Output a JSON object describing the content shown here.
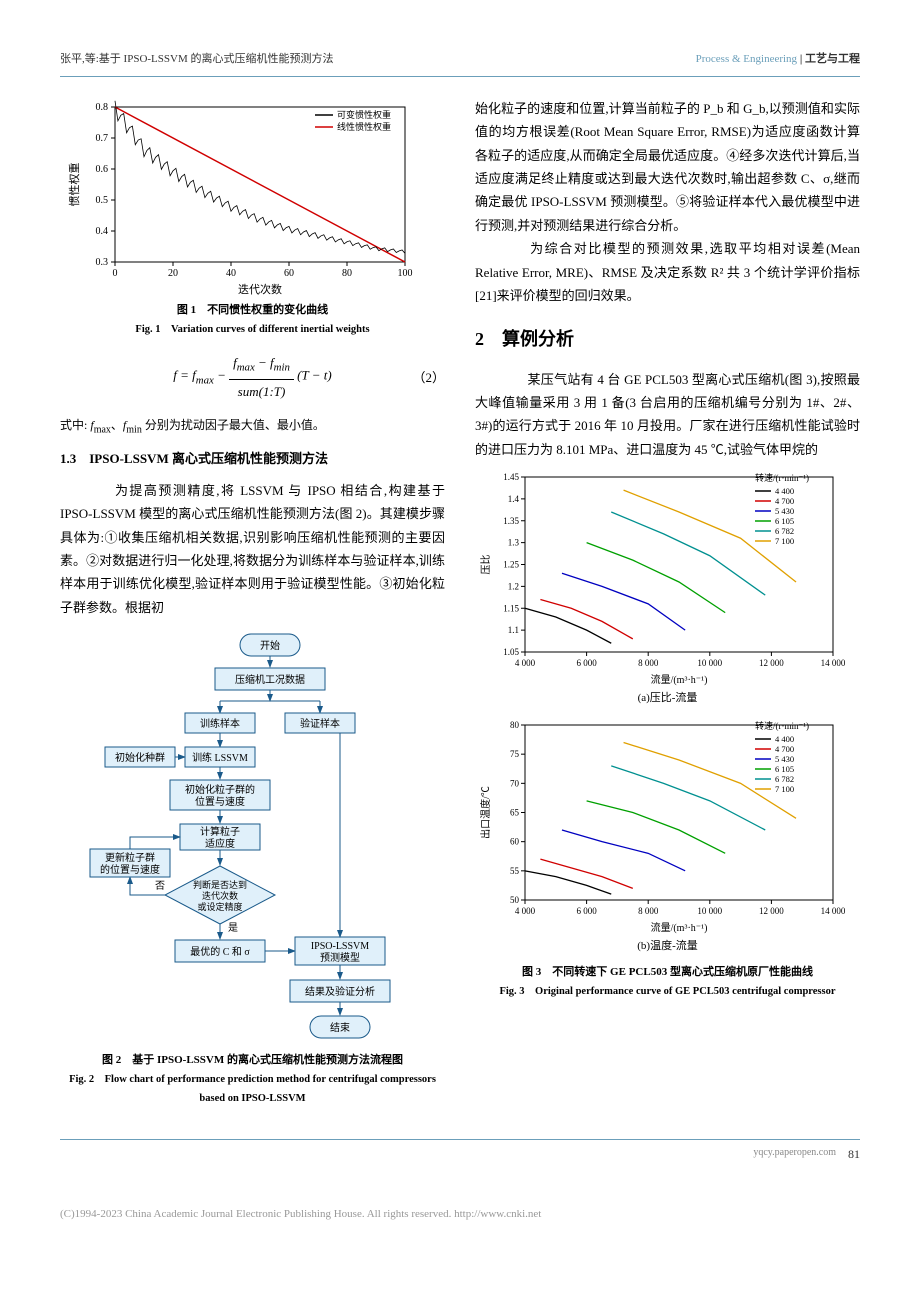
{
  "header": {
    "left": "张平,等:基于 IPSO-LSSVM 的离心式压缩机性能预测方法",
    "right_en": "Process & Engineering",
    "right_cn": " | 工艺与工程"
  },
  "fig1": {
    "caption_cn": "图 1　不同惯性权重的变化曲线",
    "caption_en": "Fig. 1　Variation curves of different inertial weights",
    "xlabel": "迭代次数",
    "ylabel": "惯性权重",
    "xlim": [
      0,
      100
    ],
    "xtick_step": 20,
    "ylim": [
      0.3,
      0.8
    ],
    "yticks": [
      0.3,
      0.4,
      0.5,
      0.6,
      0.7,
      0.8
    ],
    "legend": [
      "可变惯性权重",
      "线性惯性权重"
    ],
    "colors": [
      "#000000",
      "#d00000"
    ],
    "bg": "#ffffff",
    "line_linear": [
      [
        0,
        0.8
      ],
      [
        100,
        0.3
      ]
    ],
    "line_var_base": [
      [
        0,
        0.78
      ],
      [
        10,
        0.65
      ],
      [
        20,
        0.58
      ],
      [
        30,
        0.52
      ],
      [
        40,
        0.47
      ],
      [
        50,
        0.43
      ],
      [
        60,
        0.4
      ],
      [
        70,
        0.38
      ],
      [
        80,
        0.36
      ],
      [
        90,
        0.34
      ],
      [
        100,
        0.33
      ]
    ],
    "var_amp": 0.04
  },
  "equation": {
    "text": "f = f_max − (f_max − f_min) / sum(1:T) · (T − t)",
    "num": "（2）"
  },
  "para_fminmax": "式中: f_max、f_min 分别为扰动因子最大值、最小值。",
  "h13": "1.3　IPSO-LSSVM 离心式压缩机性能预测方法",
  "para13_left": "　　为提高预测精度,将 LSSVM 与 IPSO 相结合,构建基于 IPSO-LSSVM 模型的离心式压缩机性能预测方法(图 2)。其建模步骤具体为:①收集压缩机相关数据,识别影响压缩机性能预测的主要因素。②对数据进行归一化处理,将数据分为训练样本与验证样本,训练样本用于训练优化模型,验证样本则用于验证模型性能。③初始化粒子群参数。根据初",
  "para_right1": "始化粒子的速度和位置,计算当前粒子的 P_b 和 G_b,以预测值和实际值的均方根误差(Root Mean Square Error, RMSE)为适应度函数计算各粒子的适应度,从而确定全局最优适应度。④经多次迭代计算后,当适应度满足终止精度或达到最大迭代次数时,输出超参数 C、σ,继而确定最优 IPSO-LSSVM 预测模型。⑤将验证样本代入最优模型中进行预测,并对预测结果进行综合分析。",
  "para_right2": "　　为综合对比模型的预测效果,选取平均相对误差(Mean Relative Error, MRE)、RMSE 及决定系数 R² 共 3 个统计学评价指标[21]来评价模型的回归效果。",
  "h2": "2　算例分析",
  "para2": "　　某压气站有 4 台 GE PCL503 型离心式压缩机(图 3),按照最大峰值输量采用 3 用 1 备(3 台启用的压缩机编号分别为 1#、2#、3#)的运行方式于 2016 年 10 月投用。厂家在进行压缩机性能试验时的进口压力为 8.101 MPa、进口温度为 45 ℃,试验气体甲烷的",
  "fig2": {
    "caption_cn": "图 2　基于 IPSO-LSSVM 的离心式压缩机性能预测方法流程图",
    "caption_en": "Fig. 2　Flow chart of performance prediction method for centrifugal compressors based on IPSO-LSSVM",
    "nodes": {
      "start": "开始",
      "data": "压缩机工况数据",
      "train": "训练样本",
      "val": "验证样本",
      "init": "初始化种群",
      "trainlssvm": "训练 LSSVM",
      "initpos": "初始化粒子群的\n位置与速度",
      "fitness": "计算粒子\n适应度",
      "judge": "判断是否达到\n迭代次数\n或设定精度",
      "update": "更新粒子群\n的位置与速度",
      "best": "最优的 C 和 σ",
      "model": "IPSO-LSSVM\n预测模型",
      "result": "结果及验证分析",
      "end": "结束"
    },
    "edge_labels": {
      "yes": "是",
      "no": "否"
    },
    "colors": {
      "fill": "#e0f0fa",
      "stroke": "#1a5a8a"
    }
  },
  "fig3": {
    "caption_cn": "图 3　不同转速下 GE PCL503 型离心式压缩机原厂性能曲线",
    "caption_en": "Fig. 3　Original performance curve of GE PCL503 centrifugal compressor",
    "sub_a": "(a)压比-流量",
    "sub_b": "(b)温度-流量",
    "xlabel": "流量/(m³·h⁻¹)",
    "ylabel_a": "压比",
    "ylabel_b": "出口温度/℃",
    "legend_title": "转速/(r·min⁻¹)",
    "speeds": [
      "4 400",
      "4 700",
      "5 430",
      "6 105",
      "6 782",
      "7 100"
    ],
    "colors": [
      "#000000",
      "#d00000",
      "#0000c0",
      "#00a000",
      "#009090",
      "#e0a000"
    ],
    "xlim": [
      4000,
      14000
    ],
    "xticks": [
      4000,
      6000,
      8000,
      10000,
      12000,
      14000
    ],
    "a_ylim": [
      1.05,
      1.45
    ],
    "a_yticks": [
      1.05,
      1.1,
      1.15,
      1.2,
      1.25,
      1.3,
      1.35,
      1.4,
      1.45
    ],
    "b_ylim": [
      50,
      80
    ],
    "b_yticks": [
      50,
      55,
      60,
      65,
      70,
      75,
      80
    ],
    "a_series": [
      [
        [
          4000,
          1.15
        ],
        [
          5000,
          1.13
        ],
        [
          6000,
          1.1
        ],
        [
          6800,
          1.07
        ]
      ],
      [
        [
          4500,
          1.17
        ],
        [
          5500,
          1.15
        ],
        [
          6500,
          1.12
        ],
        [
          7500,
          1.08
        ]
      ],
      [
        [
          5200,
          1.23
        ],
        [
          6500,
          1.2
        ],
        [
          8000,
          1.16
        ],
        [
          9200,
          1.1
        ]
      ],
      [
        [
          6000,
          1.3
        ],
        [
          7500,
          1.26
        ],
        [
          9000,
          1.21
        ],
        [
          10500,
          1.14
        ]
      ],
      [
        [
          6800,
          1.37
        ],
        [
          8500,
          1.32
        ],
        [
          10000,
          1.27
        ],
        [
          11800,
          1.18
        ]
      ],
      [
        [
          7200,
          1.42
        ],
        [
          9000,
          1.37
        ],
        [
          11000,
          1.31
        ],
        [
          12800,
          1.21
        ]
      ]
    ],
    "b_series": [
      [
        [
          4000,
          55
        ],
        [
          5000,
          54
        ],
        [
          6000,
          52.5
        ],
        [
          6800,
          51
        ]
      ],
      [
        [
          4500,
          57
        ],
        [
          5500,
          55.5
        ],
        [
          6500,
          54
        ],
        [
          7500,
          52
        ]
      ],
      [
        [
          5200,
          62
        ],
        [
          6500,
          60
        ],
        [
          8000,
          58
        ],
        [
          9200,
          55
        ]
      ],
      [
        [
          6000,
          67
        ],
        [
          7500,
          65
        ],
        [
          9000,
          62
        ],
        [
          10500,
          58
        ]
      ],
      [
        [
          6800,
          73
        ],
        [
          8500,
          70
        ],
        [
          10000,
          67
        ],
        [
          11800,
          62
        ]
      ],
      [
        [
          7200,
          77
        ],
        [
          9000,
          74
        ],
        [
          11000,
          70
        ],
        [
          12800,
          64
        ]
      ]
    ]
  },
  "footer": {
    "url": "yqcy.paperopen.com",
    "page": "81"
  },
  "copyright": "(C)1994-2023 China Academic Journal Electronic Publishing House. All rights reserved.    http://www.cnki.net"
}
